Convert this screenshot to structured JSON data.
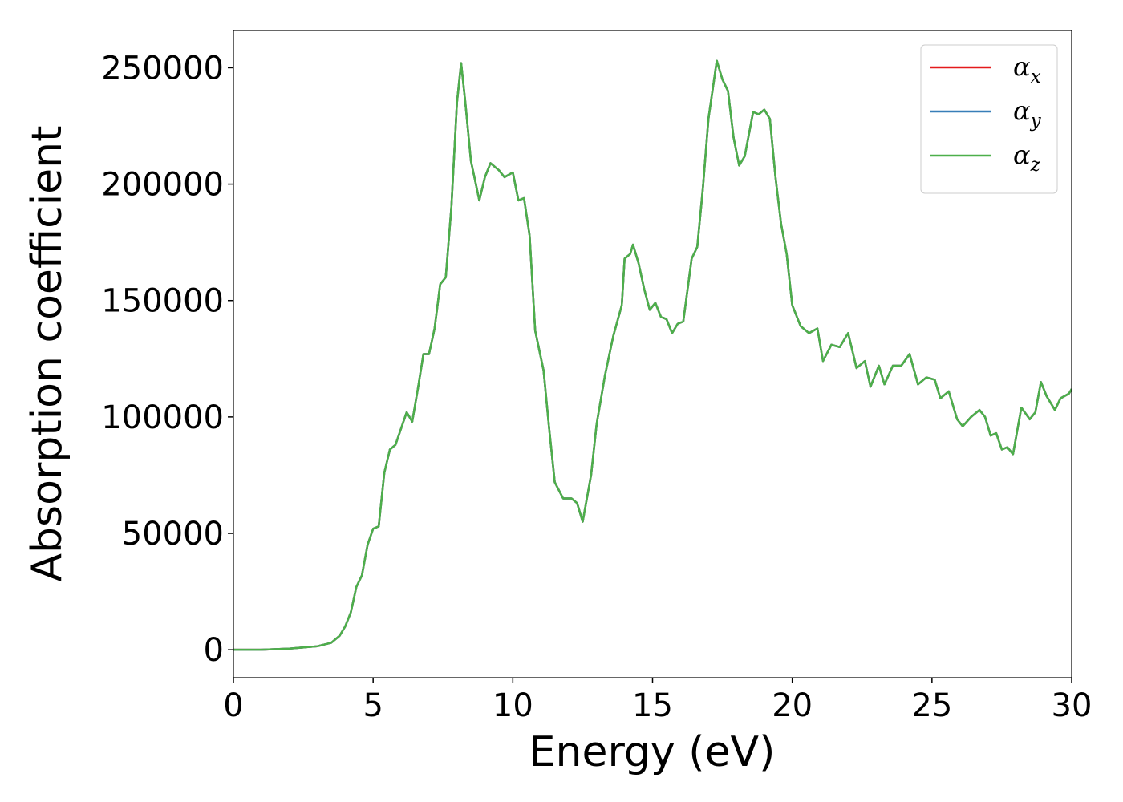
{
  "chart_data": {
    "type": "line",
    "xlabel": "Energy (eV)",
    "ylabel": "Absorption coefficient",
    "xlim": [
      0,
      30
    ],
    "xticks": [
      0,
      5,
      10,
      15,
      20,
      25,
      30
    ],
    "ylim": [
      -12000,
      266000
    ],
    "yticks": [
      0,
      50000,
      100000,
      150000,
      200000,
      250000
    ],
    "legend": "upper right",
    "grid": false,
    "x": [
      0,
      1,
      2,
      3,
      3.5,
      3.8,
      4,
      4.2,
      4.4,
      4.6,
      4.8,
      5,
      5.2,
      5.4,
      5.6,
      5.8,
      6,
      6.2,
      6.4,
      6.6,
      6.8,
      7,
      7.2,
      7.4,
      7.6,
      7.8,
      8,
      8.15,
      8.3,
      8.5,
      8.8,
      9,
      9.2,
      9.5,
      9.7,
      10,
      10.2,
      10.4,
      10.6,
      10.8,
      11.1,
      11.3,
      11.5,
      11.8,
      12.1,
      12.3,
      12.5,
      12.8,
      13,
      13.3,
      13.6,
      13.9,
      14,
      14.2,
      14.3,
      14.5,
      14.7,
      14.9,
      15.1,
      15.3,
      15.5,
      15.7,
      15.9,
      16.1,
      16.4,
      16.6,
      16.8,
      17,
      17.3,
      17.5,
      17.7,
      17.9,
      18.1,
      18.3,
      18.6,
      18.8,
      19,
      19.2,
      19.4,
      19.6,
      19.8,
      20,
      20.3,
      20.6,
      20.9,
      21.1,
      21.4,
      21.7,
      22,
      22.3,
      22.6,
      22.8,
      23.1,
      23.3,
      23.6,
      23.9,
      24.2,
      24.5,
      24.8,
      25.1,
      25.3,
      25.6,
      25.9,
      26.1,
      26.4,
      26.7,
      26.9,
      27.1,
      27.3,
      27.5,
      27.7,
      27.9,
      28.2,
      28.5,
      28.7,
      28.9,
      29.1,
      29.4,
      29.6,
      29.9,
      30
    ],
    "series": [
      {
        "name": "αx",
        "color": "#e41a1c",
        "values": [
          0,
          0,
          500,
          1500,
          3000,
          6000,
          10000,
          16000,
          27000,
          32000,
          45000,
          52000,
          53000,
          76000,
          86000,
          88000,
          95000,
          102000,
          98000,
          112000,
          127000,
          127000,
          138000,
          157000,
          160000,
          190000,
          235000,
          252000,
          235000,
          210000,
          193000,
          203000,
          209000,
          206000,
          203000,
          205000,
          193000,
          194000,
          178000,
          137000,
          120000,
          95000,
          72000,
          65000,
          65000,
          63000,
          55000,
          75000,
          97000,
          118000,
          135000,
          148000,
          168000,
          170000,
          174000,
          166000,
          155000,
          146000,
          149000,
          143000,
          142000,
          136000,
          140000,
          141000,
          168000,
          173000,
          198000,
          228000,
          253000,
          245000,
          240000,
          220000,
          208000,
          212000,
          231000,
          230000,
          232000,
          228000,
          203000,
          183000,
          170000,
          148000,
          139000,
          136000,
          138000,
          124000,
          131000,
          130000,
          136000,
          121000,
          124000,
          113000,
          122000,
          114000,
          122000,
          122000,
          127000,
          114000,
          117000,
          116000,
          108000,
          111000,
          99000,
          96000,
          100000,
          103000,
          100000,
          92000,
          93000,
          86000,
          87000,
          84000,
          104000,
          99000,
          102000,
          115000,
          109000,
          103000,
          108000,
          110000,
          112000
        ]
      },
      {
        "name": "αy",
        "color": "#377eb8",
        "values": [
          0,
          0,
          500,
          1500,
          3000,
          6000,
          10000,
          16000,
          27000,
          32000,
          45000,
          52000,
          53000,
          76000,
          86000,
          88000,
          95000,
          102000,
          98000,
          112000,
          127000,
          127000,
          138000,
          157000,
          160000,
          190000,
          235000,
          252000,
          235000,
          210000,
          193000,
          203000,
          209000,
          206000,
          203000,
          205000,
          193000,
          194000,
          178000,
          137000,
          120000,
          95000,
          72000,
          65000,
          65000,
          63000,
          55000,
          75000,
          97000,
          118000,
          135000,
          148000,
          168000,
          170000,
          174000,
          166000,
          155000,
          146000,
          149000,
          143000,
          142000,
          136000,
          140000,
          141000,
          168000,
          173000,
          198000,
          228000,
          253000,
          245000,
          240000,
          220000,
          208000,
          212000,
          231000,
          230000,
          232000,
          228000,
          203000,
          183000,
          170000,
          148000,
          139000,
          136000,
          138000,
          124000,
          131000,
          130000,
          136000,
          121000,
          124000,
          113000,
          122000,
          114000,
          122000,
          122000,
          127000,
          114000,
          117000,
          116000,
          108000,
          111000,
          99000,
          96000,
          100000,
          103000,
          100000,
          92000,
          93000,
          86000,
          87000,
          84000,
          104000,
          99000,
          102000,
          115000,
          109000,
          103000,
          108000,
          110000,
          112000
        ]
      },
      {
        "name": "αz",
        "color": "#4daf4a",
        "values": [
          0,
          0,
          500,
          1500,
          3000,
          6000,
          10000,
          16000,
          27000,
          32000,
          45000,
          52000,
          53000,
          76000,
          86000,
          88000,
          95000,
          102000,
          98000,
          112000,
          127000,
          127000,
          138000,
          157000,
          160000,
          190000,
          235000,
          252000,
          235000,
          210000,
          193000,
          203000,
          209000,
          206000,
          203000,
          205000,
          193000,
          194000,
          178000,
          137000,
          120000,
          95000,
          72000,
          65000,
          65000,
          63000,
          55000,
          75000,
          97000,
          118000,
          135000,
          148000,
          168000,
          170000,
          174000,
          166000,
          155000,
          146000,
          149000,
          143000,
          142000,
          136000,
          140000,
          141000,
          168000,
          173000,
          198000,
          228000,
          253000,
          245000,
          240000,
          220000,
          208000,
          212000,
          231000,
          230000,
          232000,
          228000,
          203000,
          183000,
          170000,
          148000,
          139000,
          136000,
          138000,
          124000,
          131000,
          130000,
          136000,
          121000,
          124000,
          113000,
          122000,
          114000,
          122000,
          122000,
          127000,
          114000,
          117000,
          116000,
          108000,
          111000,
          99000,
          96000,
          100000,
          103000,
          100000,
          92000,
          93000,
          86000,
          87000,
          84000,
          104000,
          99000,
          102000,
          115000,
          109000,
          103000,
          108000,
          110000,
          112000
        ]
      }
    ]
  }
}
